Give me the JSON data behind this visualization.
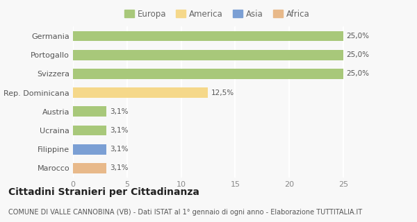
{
  "categories": [
    "Marocco",
    "Filippine",
    "Ucraina",
    "Austria",
    "Rep. Dominicana",
    "Svizzera",
    "Portogallo",
    "Germania"
  ],
  "values": [
    3.1,
    3.1,
    3.1,
    3.1,
    12.5,
    25.0,
    25.0,
    25.0
  ],
  "labels": [
    "3,1%",
    "3,1%",
    "3,1%",
    "3,1%",
    "12,5%",
    "25,0%",
    "25,0%",
    "25,0%"
  ],
  "colors": [
    "#e8b98a",
    "#7b9fd4",
    "#a8c87a",
    "#a8c87a",
    "#f5d88a",
    "#a8c87a",
    "#a8c87a",
    "#a8c87a"
  ],
  "legend_labels": [
    "Europa",
    "America",
    "Asia",
    "Africa"
  ],
  "legend_colors": [
    "#a8c87a",
    "#f5d88a",
    "#7b9fd4",
    "#e8b98a"
  ],
  "xlim": [
    0,
    27
  ],
  "xticks": [
    0,
    5,
    10,
    15,
    20,
    25
  ],
  "title": "Cittadini Stranieri per Cittadinanza",
  "subtitle": "COMUNE DI VALLE CANNOBINA (VB) - Dati ISTAT al 1° gennaio di ogni anno - Elaborazione TUTTITALIA.IT",
  "bg_color": "#f8f8f8",
  "grid_color": "#ffffff",
  "bar_height": 0.55,
  "title_fontsize": 10,
  "subtitle_fontsize": 7,
  "label_fontsize": 7.5,
  "tick_fontsize": 8,
  "legend_fontsize": 8.5
}
